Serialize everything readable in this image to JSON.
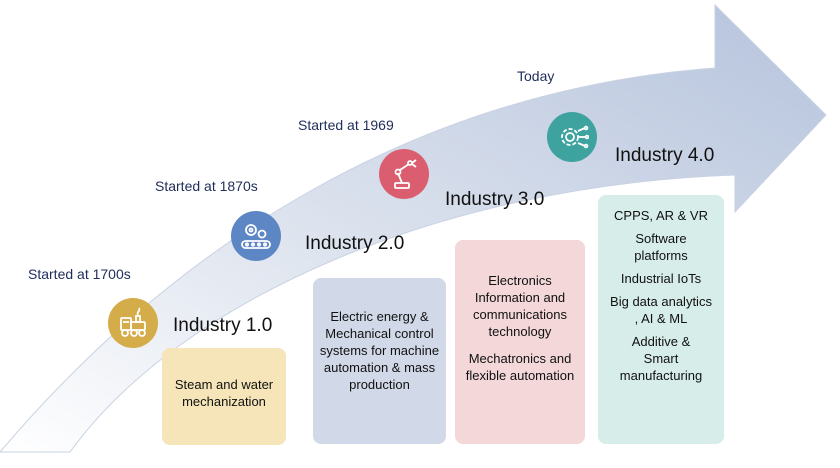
{
  "stages": [
    {
      "start": "Started at 1700s",
      "title": "Industry 1.0",
      "icon": "steam-engine-icon",
      "color": "#d4ad4a",
      "box_color": "#f5e5b8",
      "items": [
        "Steam and water mechanization"
      ]
    },
    {
      "start": "Started at 1870s",
      "title": "Industry 2.0",
      "icon": "conveyor-gears-icon",
      "color": "#5d86c5",
      "box_color": "#d1d9e8",
      "items": [
        "Electric energy & Mechanical control systems for machine automation & mass production"
      ]
    },
    {
      "start": "Started at 1969",
      "title": "Industry 3.0",
      "icon": "robot-arm-icon",
      "color": "#db5e70",
      "box_color": "#f3d7d9",
      "items": [
        "Electronics Information and communications technology",
        "Mechatronics and flexible automation"
      ]
    },
    {
      "start": "Today",
      "title": "Industry 4.0",
      "icon": "digital-gear-icon",
      "color": "#3ea39f",
      "box_color": "#d6ede9",
      "items": [
        "CPPS, AR & VR",
        "Software platforms",
        "Industrial IoTs",
        "Big data analytics , AI & ML",
        "Additive & Smart manufacturing"
      ]
    }
  ]
}
